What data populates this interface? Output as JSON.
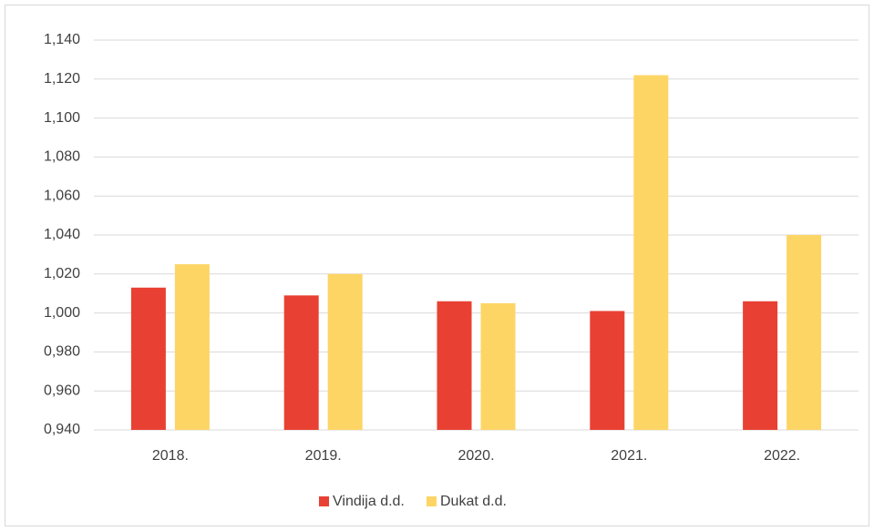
{
  "chart_data": {
    "type": "bar",
    "categories": [
      "2018.",
      "2019.",
      "2020.",
      "2021.",
      "2022."
    ],
    "series": [
      {
        "name": "Vindija d.d.",
        "color": "#e84133",
        "values": [
          1.013,
          1.009,
          1.006,
          1.001,
          1.006
        ]
      },
      {
        "name": "Dukat d.d.",
        "color": "#fdd565",
        "values": [
          1.025,
          1.02,
          1.005,
          1.122,
          1.04
        ]
      }
    ],
    "ylim": [
      0.94,
      1.14
    ],
    "yticks": [
      {
        "value": 0.94,
        "label": "0,940"
      },
      {
        "value": 0.96,
        "label": "0,960"
      },
      {
        "value": 0.98,
        "label": "0,980"
      },
      {
        "value": 1.0,
        "label": "1,000"
      },
      {
        "value": 1.02,
        "label": "1,020"
      },
      {
        "value": 1.04,
        "label": "1,040"
      },
      {
        "value": 1.06,
        "label": "1,060"
      },
      {
        "value": 1.08,
        "label": "1,080"
      },
      {
        "value": 1.1,
        "label": "1,100"
      },
      {
        "value": 1.12,
        "label": "1,120"
      },
      {
        "value": 1.14,
        "label": "1,140"
      }
    ],
    "grid": true,
    "legend": "bottom"
  }
}
